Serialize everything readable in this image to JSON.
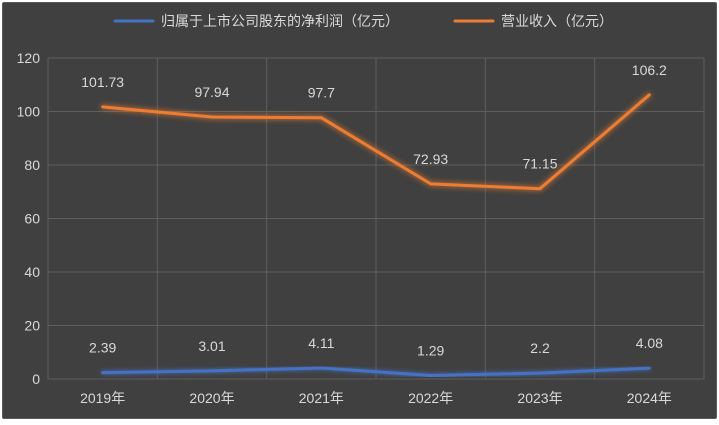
{
  "chart_data": {
    "type": "line",
    "categories": [
      "2019年",
      "2020年",
      "2021年",
      "2022年",
      "2023年",
      "2024年"
    ],
    "series": [
      {
        "name": "归属于上市公司股东的净利润（亿元）",
        "color": "#4472c4",
        "values": [
          2.39,
          3.01,
          4.11,
          1.29,
          2.2,
          4.08
        ],
        "labels": [
          "2.39",
          "3.01",
          "4.11",
          "1.29",
          "2.2",
          "4.08"
        ]
      },
      {
        "name": "营业收入（亿元）",
        "color": "#ed7d31",
        "values": [
          101.73,
          97.94,
          97.7,
          72.93,
          71.15,
          106.2
        ],
        "labels": [
          "101.73",
          "97.94",
          "97.7",
          "72.93",
          "71.15",
          "106.2"
        ]
      }
    ],
    "ylim": [
      0,
      120
    ],
    "yticks": [
      0,
      20,
      40,
      60,
      80,
      100,
      120
    ],
    "ytick_labels": [
      "0",
      "20",
      "40",
      "60",
      "80",
      "100",
      "120"
    ],
    "grid": true,
    "legend_position": "top",
    "background_color": "#404040"
  }
}
